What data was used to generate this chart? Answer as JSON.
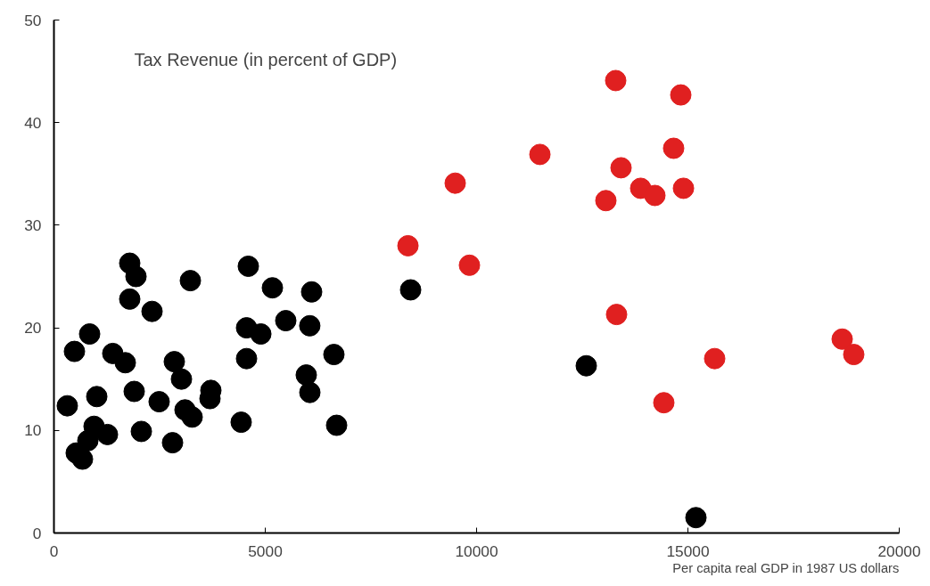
{
  "chart_data": {
    "type": "scatter",
    "ylabel": "Tax Revenue (in percent of GDP)",
    "xlabel": "Per capita real GDP in 1987 US dollars",
    "xlim": [
      0,
      20000
    ],
    "ylim": [
      0,
      50
    ],
    "xticks": [
      0,
      5000,
      10000,
      15000,
      20000
    ],
    "yticks": [
      0,
      10,
      20,
      30,
      40,
      50
    ],
    "grid": false,
    "marker": "circle",
    "series": [
      {
        "color": "#000000",
        "x": [
          316,
          485,
          844,
          527,
          675,
          802,
          949,
          1013,
          1266,
          1392,
          1688,
          1793,
          1941,
          1793,
          2321,
          1899,
          2068,
          2489,
          2848,
          2806,
          3017,
          3101,
          3270,
          3228,
          3692,
          3713,
          4430,
          4599,
          4557,
          4557,
          4895,
          5169,
          5485,
          6097,
          6053,
          5970,
          6055,
          6624,
          6688,
          8439,
          12595,
          15190
        ],
        "values": [
          12.4,
          17.7,
          19.4,
          7.8,
          7.2,
          9.0,
          10.4,
          13.3,
          9.6,
          17.5,
          16.6,
          26.3,
          25.0,
          22.8,
          21.6,
          13.8,
          9.9,
          12.8,
          16.7,
          8.8,
          15.0,
          12.0,
          11.3,
          24.6,
          13.1,
          13.9,
          10.8,
          26.0,
          20.0,
          17.0,
          19.4,
          23.9,
          20.7,
          23.5,
          20.2,
          15.4,
          13.7,
          17.4,
          10.5,
          23.7,
          16.3,
          1.5
        ]
      },
      {
        "color": "#e02020",
        "x": [
          13291,
          14831,
          11498,
          14662,
          13418,
          9494,
          13882,
          14219,
          14895,
          13059,
          8376,
          9831,
          13312,
          18650,
          18924,
          15633,
          14430
        ],
        "values": [
          44.1,
          42.7,
          36.9,
          37.5,
          35.6,
          34.1,
          33.6,
          32.9,
          33.6,
          32.4,
          28.0,
          26.1,
          21.3,
          18.9,
          17.4,
          17.0,
          12.7
        ]
      }
    ]
  }
}
